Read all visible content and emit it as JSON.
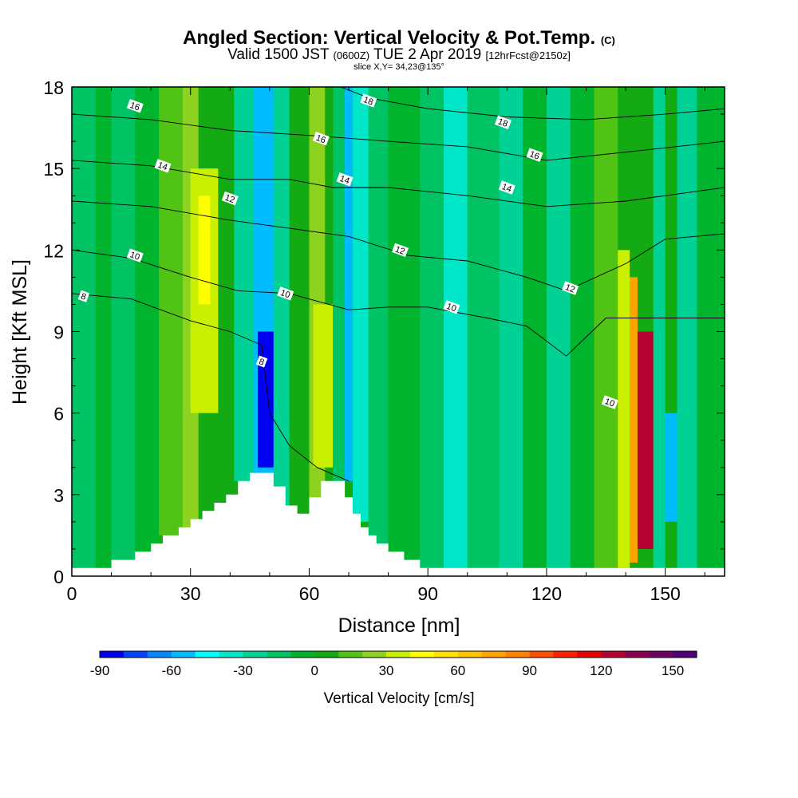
{
  "header": {
    "title": "Angled Section: Vertical Velocity & Pot.Temp.",
    "title_unit": "(C)",
    "valid_prefix": "Valid 1500 JST",
    "valid_utc": "(0600Z)",
    "valid_date": "TUE 2 Apr 2019",
    "forecast": "[12hrFcst@2150z]",
    "slice": "slice X,Y= 34,23@135°"
  },
  "chart_data": {
    "type": "heatmap",
    "xlabel": "Distance [nm]",
    "ylabel": "Height [Kft MSL]",
    "xlim": [
      0,
      165
    ],
    "ylim": [
      0,
      18
    ],
    "x_ticks": [
      0,
      30,
      60,
      90,
      120,
      150
    ],
    "y_ticks": [
      0,
      3,
      6,
      9,
      12,
      15,
      18
    ],
    "colorbar": {
      "label": "Vertical Velocity [cm/s]",
      "ticks": [
        -90,
        -60,
        -30,
        0,
        30,
        60,
        90,
        120,
        150
      ],
      "levels": [
        -90,
        -80,
        -70,
        -60,
        -50,
        -40,
        -30,
        -20,
        -10,
        0,
        10,
        20,
        30,
        40,
        50,
        60,
        70,
        80,
        90,
        100,
        110,
        120,
        130,
        140,
        150,
        160
      ],
      "colors": [
        "#0000f0",
        "#0044ff",
        "#0088ff",
        "#00bbff",
        "#00ffff",
        "#00e6c8",
        "#00d296",
        "#00c364",
        "#00b42d",
        "#14aa14",
        "#50c314",
        "#8cd21e",
        "#c8f000",
        "#ffff00",
        "#ffe100",
        "#ffc300",
        "#ffa500",
        "#ff8200",
        "#ff5000",
        "#ff1e00",
        "#e60000",
        "#b40032",
        "#8c0050",
        "#6e0064",
        "#500078"
      ]
    },
    "velocity_cells": [
      {
        "x": [
          0,
          6
        ],
        "y": [
          0.3,
          18
        ],
        "value": -15
      },
      {
        "x": [
          6,
          10
        ],
        "y": [
          0.3,
          18
        ],
        "value": -5
      },
      {
        "x": [
          10,
          16
        ],
        "y": [
          0.6,
          18
        ],
        "value": -15
      },
      {
        "x": [
          16,
          22
        ],
        "y": [
          0.9,
          18
        ],
        "value": -5
      },
      {
        "x": [
          22,
          28
        ],
        "y": [
          1.5,
          18
        ],
        "value": 15
      },
      {
        "x": [
          28,
          32
        ],
        "y": [
          1.8,
          18
        ],
        "value": 25
      },
      {
        "x": [
          30,
          37
        ],
        "y": [
          6,
          15
        ],
        "value": 35
      },
      {
        "x": [
          32,
          35
        ],
        "y": [
          10,
          14
        ],
        "value": 45
      },
      {
        "x": [
          37,
          41
        ],
        "y": [
          2.5,
          18
        ],
        "value": 5
      },
      {
        "x": [
          41,
          46
        ],
        "y": [
          3.5,
          18
        ],
        "value": -25
      },
      {
        "x": [
          46,
          51
        ],
        "y": [
          3.3,
          18
        ],
        "value": -55
      },
      {
        "x": [
          47,
          51
        ],
        "y": [
          4,
          9
        ],
        "value": -85
      },
      {
        "x": [
          51,
          55
        ],
        "y": [
          2.5,
          18
        ],
        "value": -25
      },
      {
        "x": [
          55,
          60
        ],
        "y": [
          2.0,
          18
        ],
        "value": 5
      },
      {
        "x": [
          60,
          64
        ],
        "y": [
          2.3,
          18
        ],
        "value": 25
      },
      {
        "x": [
          61,
          66
        ],
        "y": [
          4,
          10
        ],
        "value": 35
      },
      {
        "x": [
          66,
          69
        ],
        "y": [
          3.5,
          18
        ],
        "value": -15
      },
      {
        "x": [
          69,
          71
        ],
        "y": [
          3.5,
          18
        ],
        "value": -55
      },
      {
        "x": [
          71,
          75
        ],
        "y": [
          2.0,
          18
        ],
        "value": -35
      },
      {
        "x": [
          75,
          80
        ],
        "y": [
          1.0,
          18
        ],
        "value": -15
      },
      {
        "x": [
          80,
          88
        ],
        "y": [
          0.3,
          18
        ],
        "value": -5
      },
      {
        "x": [
          88,
          94
        ],
        "y": [
          0.3,
          18
        ],
        "value": -15
      },
      {
        "x": [
          94,
          100
        ],
        "y": [
          0.3,
          18
        ],
        "value": -35
      },
      {
        "x": [
          100,
          108
        ],
        "y": [
          0.3,
          18
        ],
        "value": -15
      },
      {
        "x": [
          108,
          114
        ],
        "y": [
          0.3,
          18
        ],
        "value": -25
      },
      {
        "x": [
          114,
          120
        ],
        "y": [
          0.3,
          18
        ],
        "value": -5
      },
      {
        "x": [
          120,
          126
        ],
        "y": [
          0.3,
          18
        ],
        "value": -25
      },
      {
        "x": [
          126,
          132
        ],
        "y": [
          0.3,
          18
        ],
        "value": -5
      },
      {
        "x": [
          132,
          138
        ],
        "y": [
          0.3,
          18
        ],
        "value": 15
      },
      {
        "x": [
          138,
          141
        ],
        "y": [
          0.3,
          12
        ],
        "value": 35
      },
      {
        "x": [
          141,
          143
        ],
        "y": [
          0.5,
          11
        ],
        "value": 75
      },
      {
        "x": [
          143,
          147
        ],
        "y": [
          1,
          9
        ],
        "value": 125
      },
      {
        "x": [
          147,
          150
        ],
        "y": [
          0.3,
          18
        ],
        "value": -25
      },
      {
        "x": [
          150,
          153
        ],
        "y": [
          2,
          6
        ],
        "value": -55
      },
      {
        "x": [
          153,
          158
        ],
        "y": [
          0.3,
          18
        ],
        "value": -25
      },
      {
        "x": [
          158,
          165
        ],
        "y": [
          0.3,
          18
        ],
        "value": -5
      }
    ],
    "terrain": [
      {
        "x": 0,
        "h": 0.3
      },
      {
        "x": 10,
        "h": 0.6
      },
      {
        "x": 16,
        "h": 0.9
      },
      {
        "x": 20,
        "h": 1.2
      },
      {
        "x": 23,
        "h": 1.5
      },
      {
        "x": 27,
        "h": 1.8
      },
      {
        "x": 30,
        "h": 2.1
      },
      {
        "x": 33,
        "h": 2.4
      },
      {
        "x": 36,
        "h": 2.7
      },
      {
        "x": 39,
        "h": 3.0
      },
      {
        "x": 42,
        "h": 3.5
      },
      {
        "x": 45,
        "h": 3.8
      },
      {
        "x": 51,
        "h": 3.3
      },
      {
        "x": 54,
        "h": 2.6
      },
      {
        "x": 57,
        "h": 2.3
      },
      {
        "x": 60,
        "h": 2.9
      },
      {
        "x": 63,
        "h": 3.5
      },
      {
        "x": 69,
        "h": 2.9
      },
      {
        "x": 71,
        "h": 2.3
      },
      {
        "x": 73,
        "h": 1.8
      },
      {
        "x": 75,
        "h": 1.5
      },
      {
        "x": 77,
        "h": 1.2
      },
      {
        "x": 80,
        "h": 0.9
      },
      {
        "x": 84,
        "h": 0.6
      },
      {
        "x": 88,
        "h": 0.3
      },
      {
        "x": 165,
        "h": 0.3
      }
    ],
    "pot_temp_contours": [
      {
        "level": 8,
        "points": [
          [
            0,
            10.4
          ],
          [
            15,
            10.2
          ],
          [
            30,
            9.4
          ],
          [
            40,
            9.0
          ],
          [
            48,
            8.5
          ],
          [
            50,
            6.0
          ],
          [
            55,
            4.8
          ],
          [
            62,
            4.0
          ],
          [
            70,
            3.5
          ]
        ],
        "label": "8",
        "label_at": [
          48,
          7.9
        ]
      },
      {
        "level": 10,
        "points": [
          [
            0,
            12.0
          ],
          [
            15,
            11.7
          ],
          [
            30,
            11.0
          ],
          [
            42,
            10.5
          ],
          [
            55,
            10.4
          ],
          [
            70,
            9.8
          ],
          [
            80,
            9.9
          ],
          [
            90,
            9.9
          ],
          [
            105,
            9.5
          ],
          [
            115,
            9.2
          ],
          [
            125,
            8.1
          ],
          [
            135,
            9.5
          ],
          [
            150,
            9.5
          ],
          [
            165,
            9.5
          ]
        ],
        "label": "10",
        "label_at": [
          53,
          10.4
        ]
      },
      {
        "level": 12,
        "points": [
          [
            0,
            13.8
          ],
          [
            20,
            13.6
          ],
          [
            40,
            13.1
          ],
          [
            55,
            12.8
          ],
          [
            70,
            12.5
          ],
          [
            85,
            11.8
          ],
          [
            100,
            11.6
          ],
          [
            115,
            11.0
          ],
          [
            125,
            10.5
          ],
          [
            140,
            11.5
          ],
          [
            150,
            12.4
          ],
          [
            165,
            12.6
          ]
        ],
        "label": "12",
        "label_at": [
          85,
          12.0
        ]
      },
      {
        "level": 14,
        "points": [
          [
            0,
            15.3
          ],
          [
            20,
            15.1
          ],
          [
            40,
            14.6
          ],
          [
            55,
            14.6
          ],
          [
            66,
            14.3
          ],
          [
            80,
            14.3
          ],
          [
            100,
            14.0
          ],
          [
            120,
            13.6
          ],
          [
            140,
            13.8
          ],
          [
            165,
            14.3
          ]
        ],
        "label": "14",
        "label_at": [
          66,
          14.5
        ]
      },
      {
        "level": 16,
        "points": [
          [
            0,
            17.0
          ],
          [
            20,
            16.8
          ],
          [
            40,
            16.4
          ],
          [
            62,
            16.2
          ],
          [
            80,
            16.0
          ],
          [
            100,
            15.8
          ],
          [
            120,
            15.3
          ],
          [
            140,
            15.6
          ],
          [
            165,
            16.0
          ]
        ],
        "label": "16",
        "label_at": [
          62,
          16.1
        ]
      },
      {
        "level": 18,
        "points": [
          [
            68,
            18.0
          ],
          [
            75,
            17.6
          ],
          [
            90,
            17.2
          ],
          [
            110,
            16.9
          ],
          [
            130,
            16.8
          ],
          [
            150,
            17.0
          ],
          [
            165,
            17.2
          ]
        ],
        "label": "18",
        "label_at": [
          75,
          17.6
        ]
      }
    ]
  },
  "contour_labels": [
    {
      "text": "16",
      "at": [
        16,
        17.3
      ]
    },
    {
      "text": "14",
      "at": [
        23,
        15.1
      ]
    },
    {
      "text": "12",
      "at": [
        40,
        13.9
      ]
    },
    {
      "text": "10",
      "at": [
        16,
        11.8
      ]
    },
    {
      "text": "8",
      "at": [
        3,
        10.3
      ]
    },
    {
      "text": "10",
      "at": [
        54,
        10.4
      ]
    },
    {
      "text": "8",
      "at": [
        48,
        7.9
      ]
    },
    {
      "text": "16",
      "at": [
        63,
        16.1
      ]
    },
    {
      "text": "18",
      "at": [
        75,
        17.5
      ]
    },
    {
      "text": "14",
      "at": [
        69,
        14.6
      ]
    },
    {
      "text": "12",
      "at": [
        83,
        12.0
      ]
    },
    {
      "text": "10",
      "at": [
        96,
        9.9
      ]
    },
    {
      "text": "18",
      "at": [
        109,
        16.7
      ]
    },
    {
      "text": "16",
      "at": [
        117,
        15.5
      ]
    },
    {
      "text": "14",
      "at": [
        110,
        14.3
      ]
    },
    {
      "text": "12",
      "at": [
        126,
        10.6
      ]
    },
    {
      "text": "10",
      "at": [
        136,
        6.4
      ]
    }
  ]
}
